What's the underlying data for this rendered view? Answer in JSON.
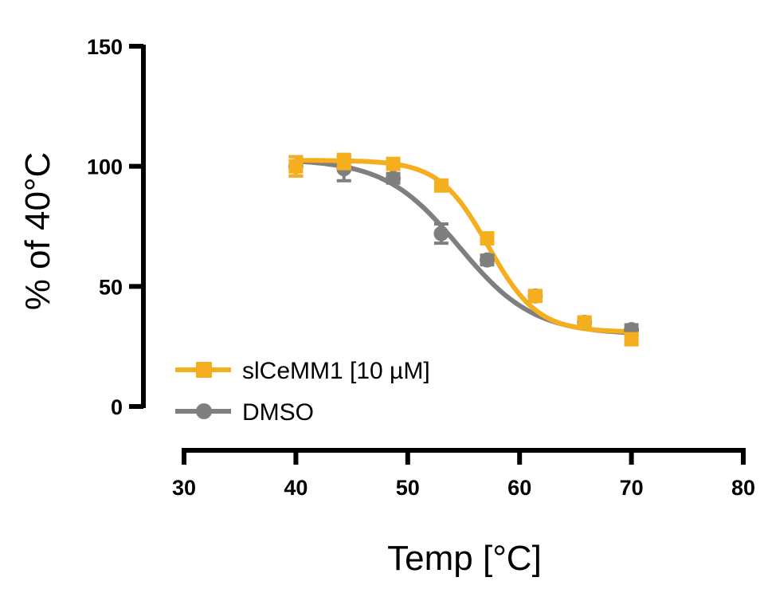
{
  "chart_data": {
    "type": "line",
    "xlabel": "Temp [°C]",
    "ylabel": "% of 40°C",
    "xlim": [
      30,
      80
    ],
    "ylim": [
      0,
      150
    ],
    "xticks": [
      30,
      40,
      50,
      60,
      70,
      80
    ],
    "yticks": [
      0,
      50,
      100,
      150
    ],
    "grid": false,
    "legend_position": "bottom-left",
    "series": [
      {
        "name": "slCeMM1 [10 µM]",
        "color": "#F5AE1E",
        "marker": "square",
        "x": [
          40,
          44.3,
          48.7,
          53,
          57.1,
          61.4,
          65.8,
          70
        ],
        "y": [
          100,
          102,
          101,
          92,
          70,
          46,
          35,
          28
        ],
        "err": [
          4,
          3,
          2,
          2,
          2,
          2,
          2,
          2
        ],
        "fit": {
          "bottom": 31,
          "top": 102.5,
          "logEC50": 57.2,
          "hill": 0.13
        }
      },
      {
        "name": "DMSO",
        "color": "#7F7F7F",
        "marker": "circle",
        "x": [
          40,
          44.3,
          48.7,
          53,
          57.1,
          61.4,
          65.8,
          70
        ],
        "y": [
          100,
          99,
          95,
          72,
          61,
          46,
          35,
          32
        ],
        "err": [
          4,
          5,
          2,
          4,
          2,
          2,
          2,
          2
        ],
        "fit": {
          "bottom": 30,
          "top": 103,
          "logEC50": 54.6,
          "hill": 0.086
        }
      }
    ]
  }
}
